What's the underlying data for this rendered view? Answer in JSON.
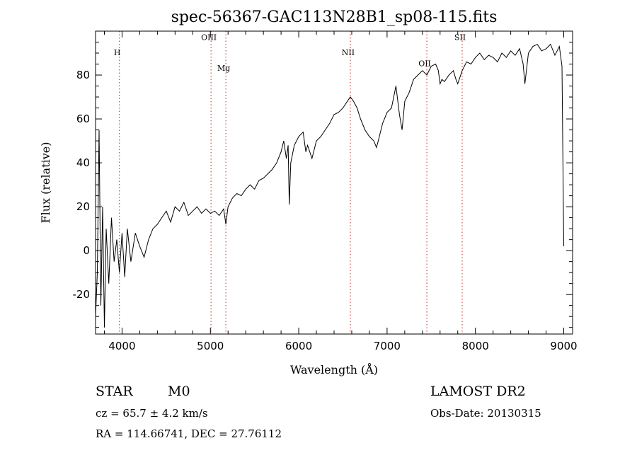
{
  "chart_data": {
    "type": "line",
    "title": "spec-56367-GAC113N28B1_sp08-115.fits",
    "xlabel": "Wavelength (Å)",
    "ylabel": "Flux (relative)",
    "xlim": [
      3700,
      9100
    ],
    "ylim": [
      -38,
      100
    ],
    "xticks": [
      4000,
      5000,
      6000,
      7000,
      8000,
      9000
    ],
    "yticks": [
      -20,
      0,
      20,
      40,
      60,
      80
    ],
    "grid": false,
    "line_color": "#000000",
    "marker_color": "#cc2222",
    "spectral_lines": [
      {
        "label": "H",
        "wavelength": 3970,
        "label_y": 89
      },
      {
        "label": "OIII",
        "wavelength": 5007,
        "label_y": 96
      },
      {
        "label": "Mg",
        "wavelength": 5175,
        "label_y": 82
      },
      {
        "label": "NII",
        "wavelength": 6584,
        "label_y": 89
      },
      {
        "label": "OII",
        "wavelength": 7450,
        "label_y": 84
      },
      {
        "label": "SII",
        "wavelength": 7850,
        "label_y": 96
      }
    ],
    "series": [
      {
        "x": [
          3700,
          3720,
          3740,
          3760,
          3780,
          3800,
          3820,
          3850,
          3880,
          3910,
          3940,
          3970,
          4000,
          4030,
          4060,
          4100,
          4150,
          4200,
          4250,
          4300,
          4350,
          4400,
          4450,
          4500,
          4550,
          4600,
          4650,
          4700,
          4750,
          4800,
          4850,
          4900,
          4950,
          5000,
          5050,
          5100,
          5150,
          5175,
          5200,
          5250,
          5300,
          5350,
          5400,
          5450,
          5500,
          5550,
          5600,
          5650,
          5700,
          5750,
          5800,
          5830,
          5860,
          5880,
          5893,
          5910,
          5950,
          6000,
          6050,
          6080,
          6100,
          6150,
          6200,
          6250,
          6300,
          6350,
          6400,
          6450,
          6500,
          6550,
          6584,
          6620,
          6660,
          6700,
          6750,
          6800,
          6850,
          6880,
          6900,
          6950,
          7000,
          7050,
          7100,
          7140,
          7170,
          7200,
          7250,
          7300,
          7350,
          7400,
          7450,
          7500,
          7550,
          7580,
          7600,
          7620,
          7650,
          7700,
          7750,
          7780,
          7800,
          7850,
          7900,
          7950,
          8000,
          8050,
          8100,
          8150,
          8200,
          8250,
          8300,
          8350,
          8400,
          8450,
          8500,
          8540,
          8560,
          8600,
          8650,
          8700,
          8750,
          8800,
          8850,
          8900,
          8950,
          8980,
          9000
        ],
        "y": [
          -30,
          -10,
          55,
          -25,
          20,
          -35,
          10,
          -15,
          15,
          -5,
          5,
          -10,
          8,
          -12,
          10,
          -5,
          8,
          2,
          -3,
          5,
          10,
          12,
          15,
          18,
          13,
          20,
          18,
          22,
          16,
          18,
          20,
          17,
          19,
          17,
          18,
          16,
          19,
          12,
          20,
          24,
          26,
          25,
          28,
          30,
          28,
          32,
          33,
          35,
          37,
          40,
          45,
          50,
          42,
          48,
          21,
          40,
          48,
          52,
          54,
          45,
          48,
          42,
          50,
          52,
          55,
          58,
          62,
          63,
          65,
          68,
          70,
          68,
          65,
          60,
          55,
          52,
          50,
          47,
          50,
          58,
          63,
          65,
          75,
          62,
          55,
          68,
          72,
          78,
          80,
          82,
          80,
          84,
          85,
          82,
          76,
          78,
          77,
          80,
          82,
          78,
          76,
          82,
          86,
          85,
          88,
          90,
          87,
          89,
          88,
          86,
          90,
          88,
          91,
          89,
          92,
          85,
          76,
          90,
          93,
          94,
          91,
          92,
          94,
          89,
          93,
          84,
          2
        ]
      }
    ]
  },
  "info": {
    "object_class": "STAR",
    "subclass": "M0",
    "survey": "LAMOST DR2",
    "redshift": "cz = 65.7 ± 4.2 km/s",
    "obs_date": "Obs-Date: 20130315",
    "coords": "RA = 114.66741, DEC =  27.76112"
  }
}
